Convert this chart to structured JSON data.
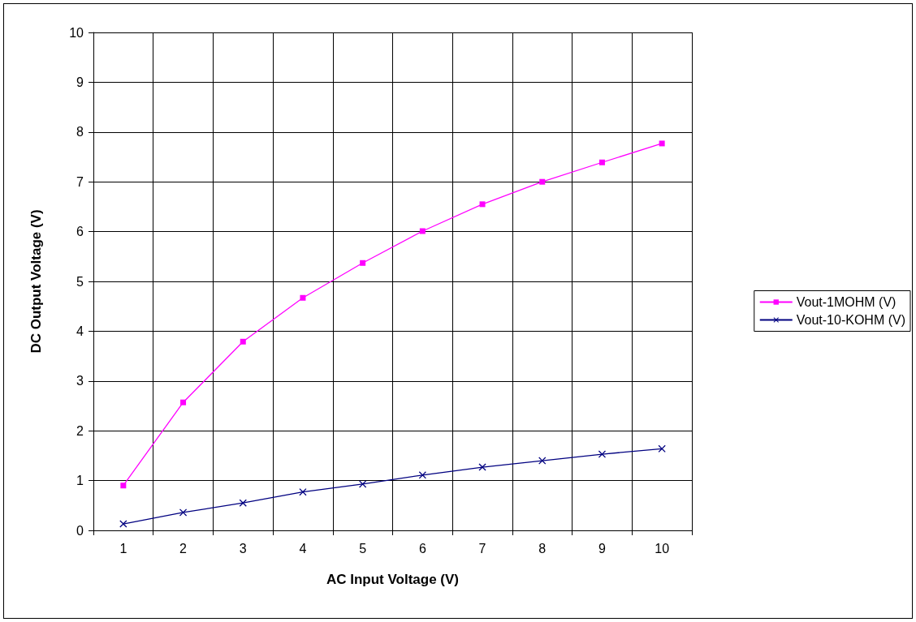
{
  "chart_data": {
    "type": "line",
    "xlabel": "AC Input Voltage (V)",
    "ylabel": "DC Output Voltage (V)",
    "categories": [
      "1",
      "2",
      "3",
      "4",
      "5",
      "6",
      "7",
      "8",
      "9",
      "10"
    ],
    "series": [
      {
        "name": "Vout-1MOHM (V)",
        "color": "#ff00ff",
        "marker": "square",
        "values": [
          0.9,
          2.57,
          3.79,
          4.67,
          5.37,
          6.01,
          6.55,
          7.0,
          7.39,
          7.77
        ]
      },
      {
        "name": "Vout-10-KOHM (V)",
        "color": "#000080",
        "marker": "cross",
        "values": [
          0.13,
          0.36,
          0.55,
          0.77,
          0.93,
          1.11,
          1.27,
          1.4,
          1.53,
          1.64
        ]
      }
    ],
    "ylim": [
      0,
      10
    ],
    "yticks": [
      0,
      1,
      2,
      3,
      4,
      5,
      6,
      7,
      8,
      9,
      10
    ],
    "grid": true,
    "legend": "right",
    "line_style": "solid"
  }
}
